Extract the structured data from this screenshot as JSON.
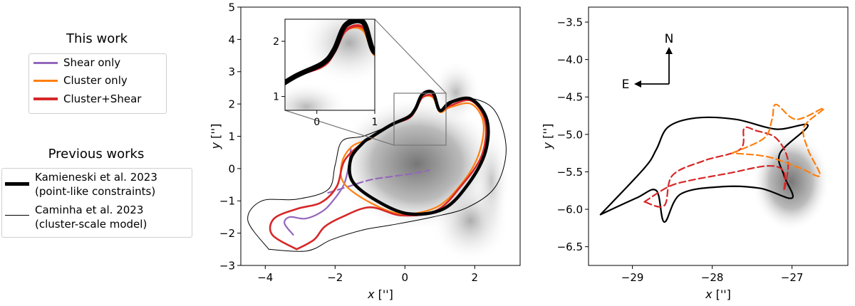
{
  "legend_this_work": {
    "title": "This work",
    "items": [
      {
        "label": "Shear only",
        "color": "#9467bd"
      },
      {
        "label": "Cluster only",
        "color": "#ff7f0e"
      },
      {
        "label": "Cluster+Shear",
        "color": "#d62728"
      }
    ]
  },
  "legend_previous": {
    "title": "Previous works",
    "items": [
      {
        "line1": "Kamieneski et al. 2023",
        "line2": "(point-like constraints)",
        "color": "#000000",
        "weight": "thick"
      },
      {
        "line1": "Caminha et al. 2023",
        "line2": "(cluster-scale model)",
        "color": "#000000",
        "weight": "thin"
      }
    ]
  },
  "chart_data": [
    {
      "type": "line",
      "panel": "left",
      "xlabel": "x ['']",
      "ylabel": "y ['']",
      "xlim": [
        -4.7,
        3.3
      ],
      "ylim": [
        -3,
        5
      ],
      "xticks": [
        -4,
        -2,
        0,
        2
      ],
      "yticks": [
        -3,
        -2,
        -1,
        0,
        1,
        2,
        3,
        4,
        5
      ],
      "background": "grayscale lensed-image map",
      "curves": [
        {
          "name": "Shear only",
          "kind": "critical curve",
          "color": "#9467bd",
          "points": [
            [
              -3.2,
              -2.05
            ],
            [
              -3.45,
              -1.7
            ],
            [
              -3.3,
              -1.5
            ],
            [
              -2.85,
              -1.55
            ],
            [
              -2.4,
              -1.35
            ],
            [
              -2.1,
              -1.05
            ],
            [
              -1.75,
              -0.5
            ],
            [
              -1.6,
              0.15
            ],
            [
              -1.55,
              0.6
            ]
          ]
        },
        {
          "name": "Shear only",
          "kind": "caustic",
          "color": "#9467bd",
          "dashed": true,
          "points": [
            [
              -2.2,
              -0.75
            ],
            [
              -1.6,
              -0.55
            ],
            [
              -1.0,
              -0.35
            ],
            [
              -0.4,
              -0.25
            ],
            [
              0.25,
              -0.15
            ],
            [
              0.7,
              -0.05
            ]
          ]
        },
        {
          "name": "Cluster only",
          "kind": "critical curve",
          "color": "#ff7f0e",
          "points": [
            [
              -1.0,
              0.9
            ],
            [
              -0.4,
              1.35
            ],
            [
              0.1,
              1.55
            ],
            [
              0.3,
              1.8
            ],
            [
              0.5,
              2.2
            ],
            [
              0.8,
              2.2
            ],
            [
              1.0,
              1.75
            ],
            [
              1.3,
              1.9
            ],
            [
              1.9,
              2.0
            ],
            [
              2.25,
              1.4
            ],
            [
              2.1,
              0.4
            ],
            [
              1.6,
              -0.5
            ],
            [
              0.9,
              -1.2
            ],
            [
              -0.1,
              -1.4
            ],
            [
              -1.0,
              -1.05
            ],
            [
              -1.75,
              -0.45
            ],
            [
              -1.8,
              0.2
            ],
            [
              -1.5,
              0.7
            ],
            [
              -1.0,
              0.9
            ]
          ]
        },
        {
          "name": "Cluster+Shear",
          "kind": "critical curve",
          "color": "#d62728",
          "points": [
            [
              -3.1,
              -2.5
            ],
            [
              -3.8,
              -2.05
            ],
            [
              -3.75,
              -1.55
            ],
            [
              -3.1,
              -1.25
            ],
            [
              -2.4,
              -1.05
            ],
            [
              -1.95,
              -0.55
            ],
            [
              -1.7,
              0.3
            ],
            [
              -1.0,
              0.95
            ],
            [
              -0.4,
              1.35
            ],
            [
              0.1,
              1.55
            ],
            [
              0.3,
              1.8
            ],
            [
              0.5,
              2.2
            ],
            [
              0.8,
              2.25
            ],
            [
              1.0,
              1.8
            ],
            [
              1.3,
              1.95
            ],
            [
              1.9,
              2.1
            ],
            [
              2.3,
              1.45
            ],
            [
              2.2,
              0.4
            ],
            [
              1.6,
              -0.55
            ],
            [
              0.9,
              -1.3
            ],
            [
              -0.1,
              -1.45
            ],
            [
              -1.0,
              -1.2
            ],
            [
              -1.8,
              -1.5
            ],
            [
              -2.3,
              -1.8
            ],
            [
              -2.6,
              -2.2
            ],
            [
              -3.1,
              -2.5
            ]
          ]
        },
        {
          "name": "Kamieneski et al. 2023",
          "kind": "critical curve",
          "color": "#000000",
          "width": "thick",
          "points": [
            [
              -1.0,
              0.95
            ],
            [
              -0.4,
              1.35
            ],
            [
              0.1,
              1.6
            ],
            [
              0.3,
              1.85
            ],
            [
              0.5,
              2.3
            ],
            [
              0.8,
              2.35
            ],
            [
              1.0,
              1.8
            ],
            [
              1.3,
              2.05
            ],
            [
              1.9,
              2.15
            ],
            [
              2.35,
              1.5
            ],
            [
              2.3,
              0.5
            ],
            [
              1.8,
              -0.5
            ],
            [
              1.1,
              -1.25
            ],
            [
              0.1,
              -1.4
            ],
            [
              -0.8,
              -1.0
            ],
            [
              -1.5,
              -0.4
            ],
            [
              -1.55,
              0.3
            ],
            [
              -1.2,
              0.8
            ],
            [
              -1.0,
              0.95
            ]
          ]
        },
        {
          "name": "Caminha et al. 2023",
          "kind": "critical curve",
          "color": "#000000",
          "width": "thin",
          "points": [
            [
              -3.9,
              -2.5
            ],
            [
              -4.5,
              -1.6
            ],
            [
              -4.1,
              -1.0
            ],
            [
              -3.1,
              -0.95
            ],
            [
              -2.2,
              -0.65
            ],
            [
              -2.0,
              0.1
            ],
            [
              -1.8,
              0.85
            ],
            [
              -1.2,
              1.0
            ],
            [
              -0.5,
              1.3
            ],
            [
              0.0,
              1.55
            ],
            [
              0.3,
              1.85
            ],
            [
              0.5,
              2.25
            ],
            [
              0.8,
              2.3
            ],
            [
              1.0,
              1.8
            ],
            [
              1.4,
              2.05
            ],
            [
              2.0,
              2.15
            ],
            [
              2.6,
              1.75
            ],
            [
              2.9,
              0.6
            ],
            [
              2.6,
              -0.55
            ],
            [
              1.8,
              -1.2
            ],
            [
              0.8,
              -1.5
            ],
            [
              -0.4,
              -1.75
            ],
            [
              -1.2,
              -1.9
            ],
            [
              -2.1,
              -2.2
            ],
            [
              -2.8,
              -2.55
            ],
            [
              -3.9,
              -2.5
            ]
          ]
        }
      ],
      "inset": {
        "xlim": [
          -0.55,
          1.0
        ],
        "ylim": [
          0.75,
          2.4
        ],
        "xticks": [
          0,
          1
        ],
        "yticks": [
          1,
          2
        ]
      }
    },
    {
      "type": "line",
      "panel": "right",
      "xlabel": "x ['']",
      "ylabel": "y ['']",
      "xlim": [
        -29.55,
        -26.3
      ],
      "ylim": [
        -6.75,
        -3.3
      ],
      "xticks": [
        -29,
        -28,
        -27
      ],
      "yticks": [
        -6.5,
        -6.0,
        -5.5,
        -5.0,
        -4.5,
        -4.0,
        -3.5
      ],
      "compass": {
        "north": "N",
        "east": "E"
      },
      "curves": [
        {
          "name": "Caminha et al. 2023",
          "kind": "caustic",
          "color": "#000000",
          "points": [
            [
              -29.4,
              -6.07
            ],
            [
              -28.95,
              -5.85
            ],
            [
              -28.7,
              -5.75
            ],
            [
              -28.6,
              -6.17
            ],
            [
              -28.4,
              -5.8
            ],
            [
              -27.9,
              -5.7
            ],
            [
              -27.4,
              -5.72
            ],
            [
              -27.0,
              -5.85
            ],
            [
              -27.1,
              -5.55
            ],
            [
              -27.15,
              -5.25
            ],
            [
              -26.8,
              -4.88
            ],
            [
              -27.2,
              -4.93
            ],
            [
              -27.7,
              -4.8
            ],
            [
              -28.2,
              -4.78
            ],
            [
              -28.55,
              -4.9
            ],
            [
              -28.7,
              -5.2
            ],
            [
              -28.85,
              -5.45
            ],
            [
              -29.4,
              -6.07
            ]
          ]
        },
        {
          "name": "Cluster+Shear",
          "kind": "caustic",
          "color": "#d62728",
          "dashed": true,
          "points": [
            [
              -28.85,
              -5.9
            ],
            [
              -28.55,
              -5.7
            ],
            [
              -28.3,
              -5.62
            ],
            [
              -27.8,
              -5.52
            ],
            [
              -27.3,
              -5.42
            ],
            [
              -27.1,
              -5.5
            ],
            [
              -27.1,
              -5.75
            ],
            [
              -27.05,
              -5.35
            ],
            [
              -27.2,
              -5.05
            ],
            [
              -27.45,
              -4.95
            ],
            [
              -27.6,
              -4.92
            ],
            [
              -27.65,
              -5.2
            ],
            [
              -28.1,
              -5.35
            ],
            [
              -28.5,
              -5.55
            ],
            [
              -28.6,
              -5.95
            ],
            [
              -28.85,
              -5.9
            ]
          ]
        },
        {
          "name": "Cluster only",
          "kind": "caustic",
          "color": "#ff7f0e",
          "dashed": true,
          "points": [
            [
              -27.75,
              -5.25
            ],
            [
              -27.35,
              -5.05
            ],
            [
              -27.25,
              -4.8
            ],
            [
              -27.2,
              -4.6
            ],
            [
              -26.95,
              -4.8
            ],
            [
              -26.6,
              -4.65
            ],
            [
              -26.85,
              -4.9
            ],
            [
              -26.8,
              -5.2
            ],
            [
              -26.65,
              -5.55
            ],
            [
              -26.9,
              -5.45
            ],
            [
              -27.3,
              -5.3
            ],
            [
              -27.75,
              -5.25
            ]
          ]
        }
      ]
    }
  ]
}
